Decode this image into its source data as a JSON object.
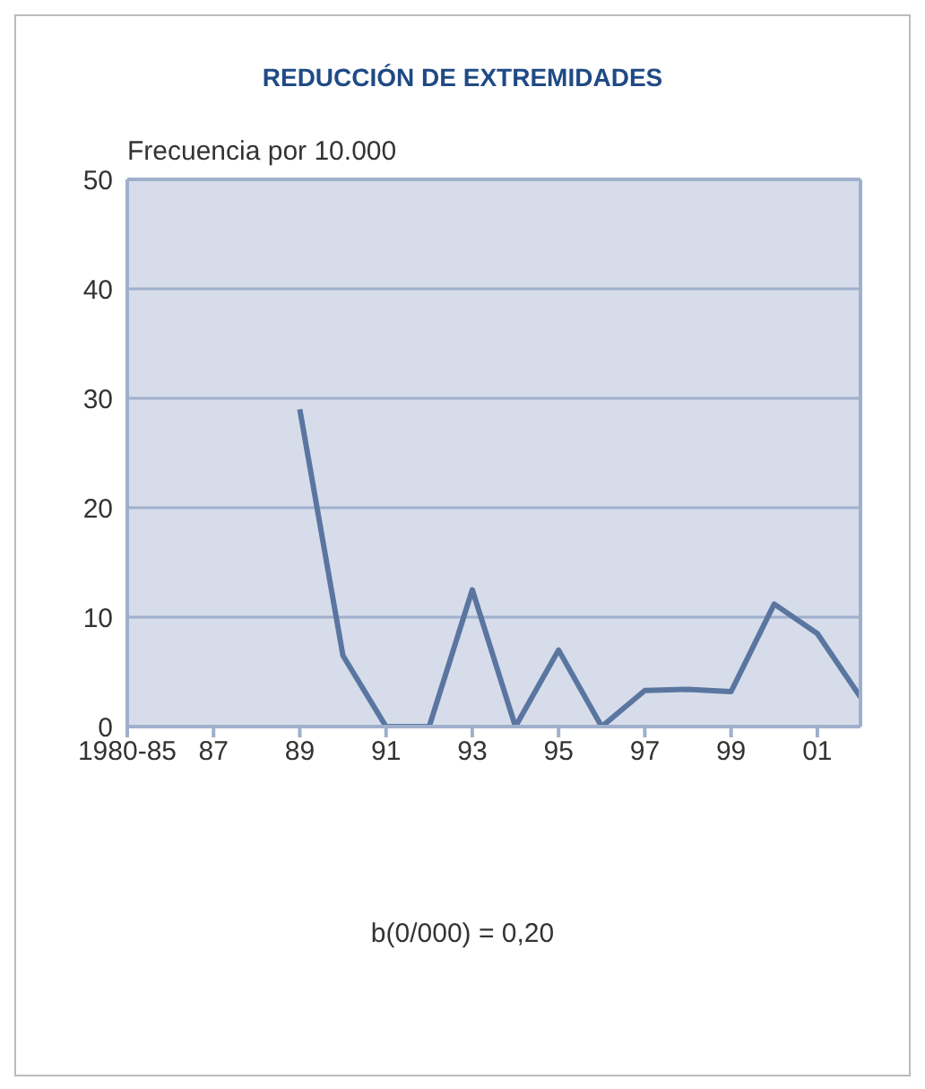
{
  "chart_data": {
    "type": "line",
    "title": "REDUCCIÓN DE EXTREMIDADES",
    "ylabel": "Frecuencia por 10.000",
    "categories": [
      "1980-85",
      null,
      "87",
      null,
      "89",
      null,
      "91",
      null,
      "93",
      null,
      "95",
      null,
      "97",
      null,
      "99",
      null,
      "01",
      null
    ],
    "series": [
      {
        "color": "#5a76a0",
        "values": [
          null,
          null,
          null,
          null,
          29,
          6.5,
          0,
          0,
          12.5,
          0,
          7,
          0,
          3.3,
          3.4,
          3.2,
          11.2,
          8.5,
          2.7
        ]
      }
    ],
    "ylim": [
      0,
      50
    ],
    "yticks": [
      0,
      10,
      20,
      30,
      40,
      50
    ],
    "grid": "y",
    "marker": "none",
    "line_style": "solid",
    "annotations": [
      "b(0/000) = 0,20"
    ]
  }
}
